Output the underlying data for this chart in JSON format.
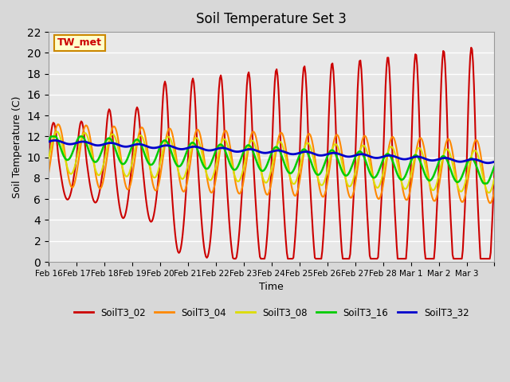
{
  "title": "Soil Temperature Set 3",
  "xlabel": "Time",
  "ylabel": "Soil Temperature (C)",
  "ylim": [
    0,
    22
  ],
  "xtick_positions": [
    0,
    1,
    2,
    3,
    4,
    5,
    6,
    7,
    8,
    9,
    10,
    11,
    12,
    13,
    14,
    15,
    16
  ],
  "xtick_labels": [
    "Feb 16",
    "Feb 17",
    "Feb 18",
    "Feb 19",
    "Feb 20",
    "Feb 21",
    "Feb 22",
    "Feb 23",
    "Feb 24",
    "Feb 25",
    "Feb 26",
    "Feb 27",
    "Feb 28",
    "Mar 1",
    "Mar 2",
    "Mar 3",
    ""
  ],
  "series_colors": {
    "SoilT3_02": "#cc0000",
    "SoilT3_04": "#ff8800",
    "SoilT3_08": "#dddd00",
    "SoilT3_16": "#00cc00",
    "SoilT3_32": "#0000cc"
  },
  "annotation_text": "TW_met",
  "annotation_color": "#cc0000",
  "annotation_bg": "#ffffcc",
  "annotation_border": "#cc8800",
  "plot_bg": "#e8e8e8",
  "legend_colors": [
    "#cc0000",
    "#ff8800",
    "#dddd00",
    "#00cc00",
    "#0000cc"
  ],
  "legend_labels": [
    "SoilT3_02",
    "SoilT3_04",
    "SoilT3_08",
    "SoilT3_16",
    "SoilT3_32"
  ]
}
